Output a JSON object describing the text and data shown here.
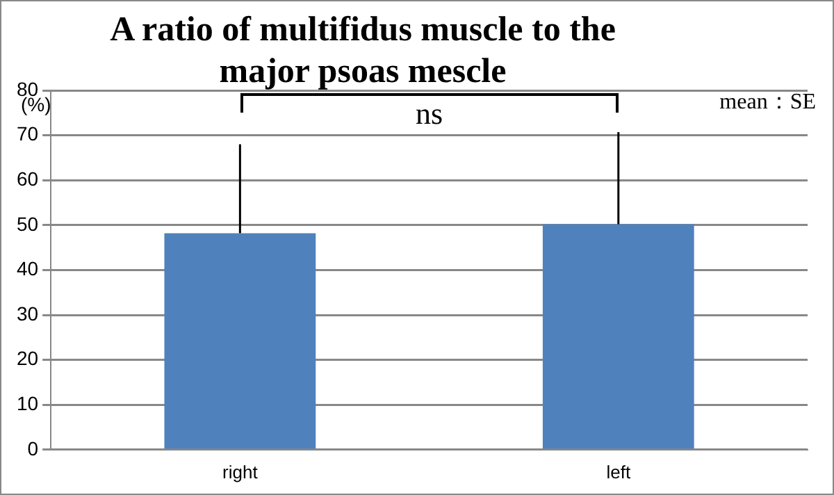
{
  "chart_data": {
    "type": "bar",
    "title": "A ratio of multifidus muscle to the major psoas mescle",
    "ylabel": "(%)",
    "categories": [
      "right",
      "left"
    ],
    "values": [
      48.2,
      50.2
    ],
    "color": "#4f81bd",
    "errors": [
      [
        48.2,
        68
      ],
      [
        50.2,
        70.7
      ]
    ],
    "ylim": [
      0,
      80
    ],
    "yticks": [
      0,
      10,
      20,
      30,
      40,
      50,
      60,
      70,
      80
    ],
    "grid": "y",
    "annotations": [
      "ns",
      "mean：SE"
    ]
  }
}
